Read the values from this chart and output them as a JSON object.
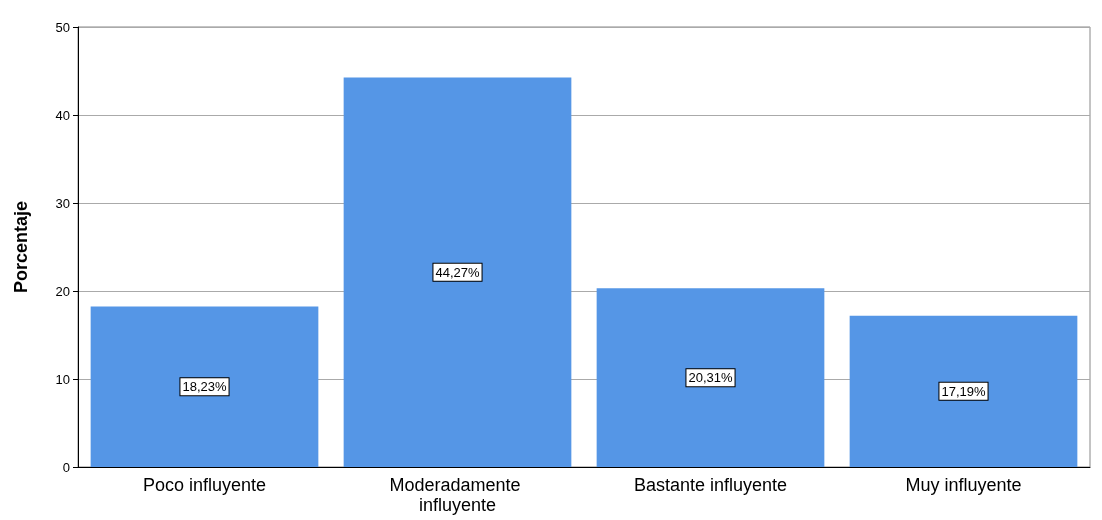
{
  "chart_data": {
    "type": "bar",
    "ylabel": "Porcentaje",
    "categories": [
      "Poco influyente",
      "Moderadamente influyente",
      "Bastante influyente",
      "Muy influyente"
    ],
    "values": [
      18.23,
      44.27,
      20.31,
      17.19
    ],
    "value_labels": [
      "18,23%",
      "44,27%",
      "20,31%",
      "17,19%"
    ],
    "color": "#5596e6",
    "ylim": [
      0,
      50
    ],
    "yticks": [
      0,
      10,
      20,
      30,
      40,
      50
    ],
    "grid": "y"
  }
}
